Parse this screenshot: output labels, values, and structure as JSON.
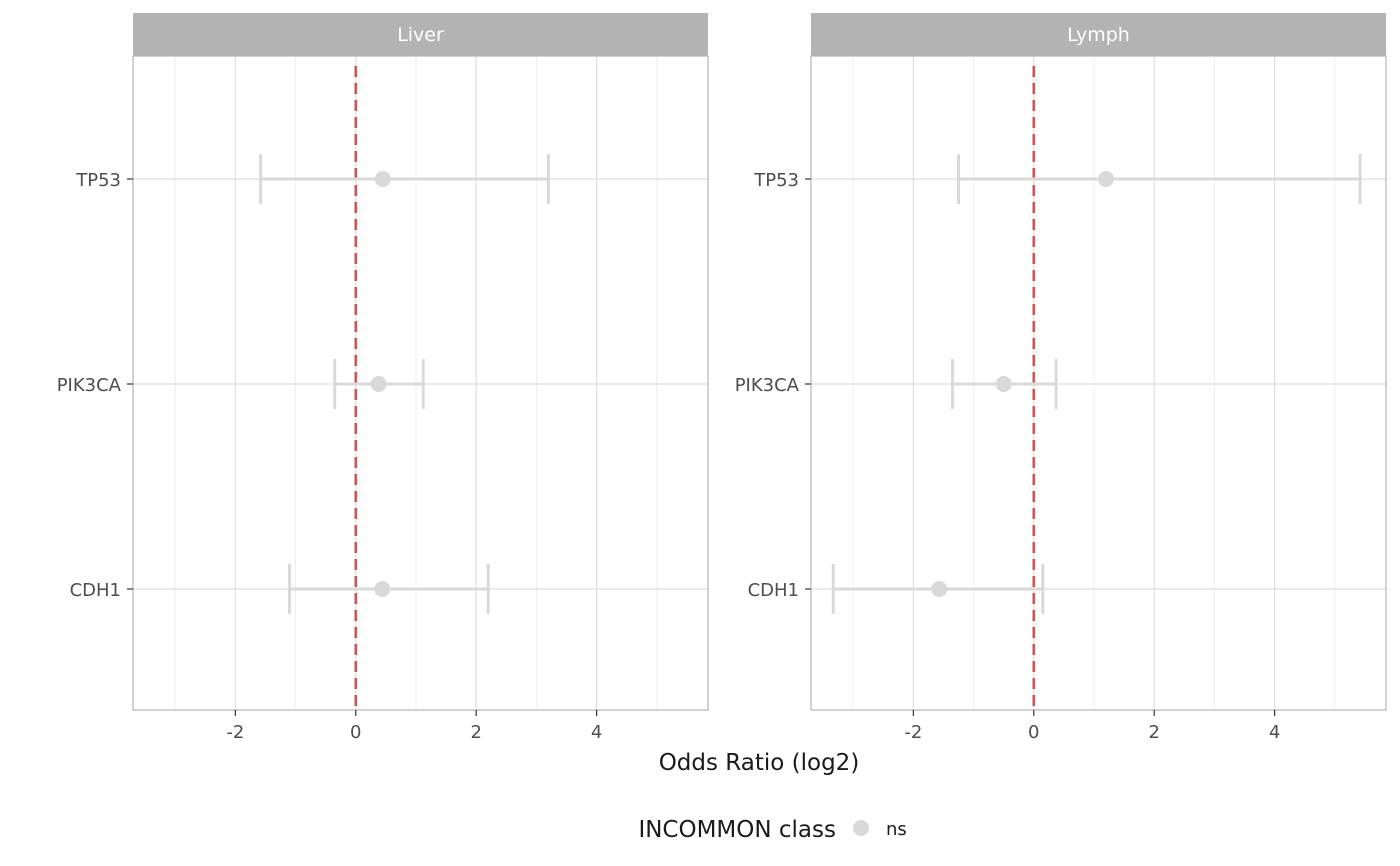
{
  "chart_data": {
    "type": "scatter",
    "subtype": "forest-plot",
    "xlabel": "Odds Ratio (log2)",
    "ylabel": "",
    "categories": [
      "TP53",
      "PIK3CA",
      "CDH1"
    ],
    "xlim": [
      -3.7,
      5.85
    ],
    "x_ticks": [
      -2,
      0,
      2,
      4
    ],
    "x_tick_labels": [
      "-2",
      "0",
      "2",
      "4"
    ],
    "reference_line": 0,
    "grid": true,
    "legend": {
      "title": "INCOMMON class",
      "position": "bottom",
      "entries": [
        {
          "label": "ns",
          "color": "#d9d9d9"
        }
      ]
    },
    "colors": {
      "point": "#d9d9d9",
      "errorbar": "#d9d9d9",
      "reference_line": "#cd5555",
      "strip_background": "#b3b3b3",
      "panel_border": "#b3b3b3",
      "grid_major": "#dedede",
      "grid_minor": "#eeeeee"
    },
    "panels": [
      {
        "title": "Liver",
        "data": [
          {
            "gene": "TP53",
            "estimate": 0.45,
            "low": -1.58,
            "high": 3.2,
            "class": "ns"
          },
          {
            "gene": "PIK3CA",
            "estimate": 0.38,
            "low": -0.35,
            "high": 1.12,
            "class": "ns"
          },
          {
            "gene": "CDH1",
            "estimate": 0.44,
            "low": -1.1,
            "high": 2.2,
            "class": "ns"
          }
        ]
      },
      {
        "title": "Lymph",
        "data": [
          {
            "gene": "TP53",
            "estimate": 1.2,
            "low": -1.25,
            "high": 5.42,
            "class": "ns"
          },
          {
            "gene": "PIK3CA",
            "estimate": -0.5,
            "low": -1.35,
            "high": 0.37,
            "class": "ns"
          },
          {
            "gene": "CDH1",
            "estimate": -1.57,
            "low": -3.33,
            "high": 0.15,
            "class": "ns"
          }
        ]
      }
    ]
  }
}
